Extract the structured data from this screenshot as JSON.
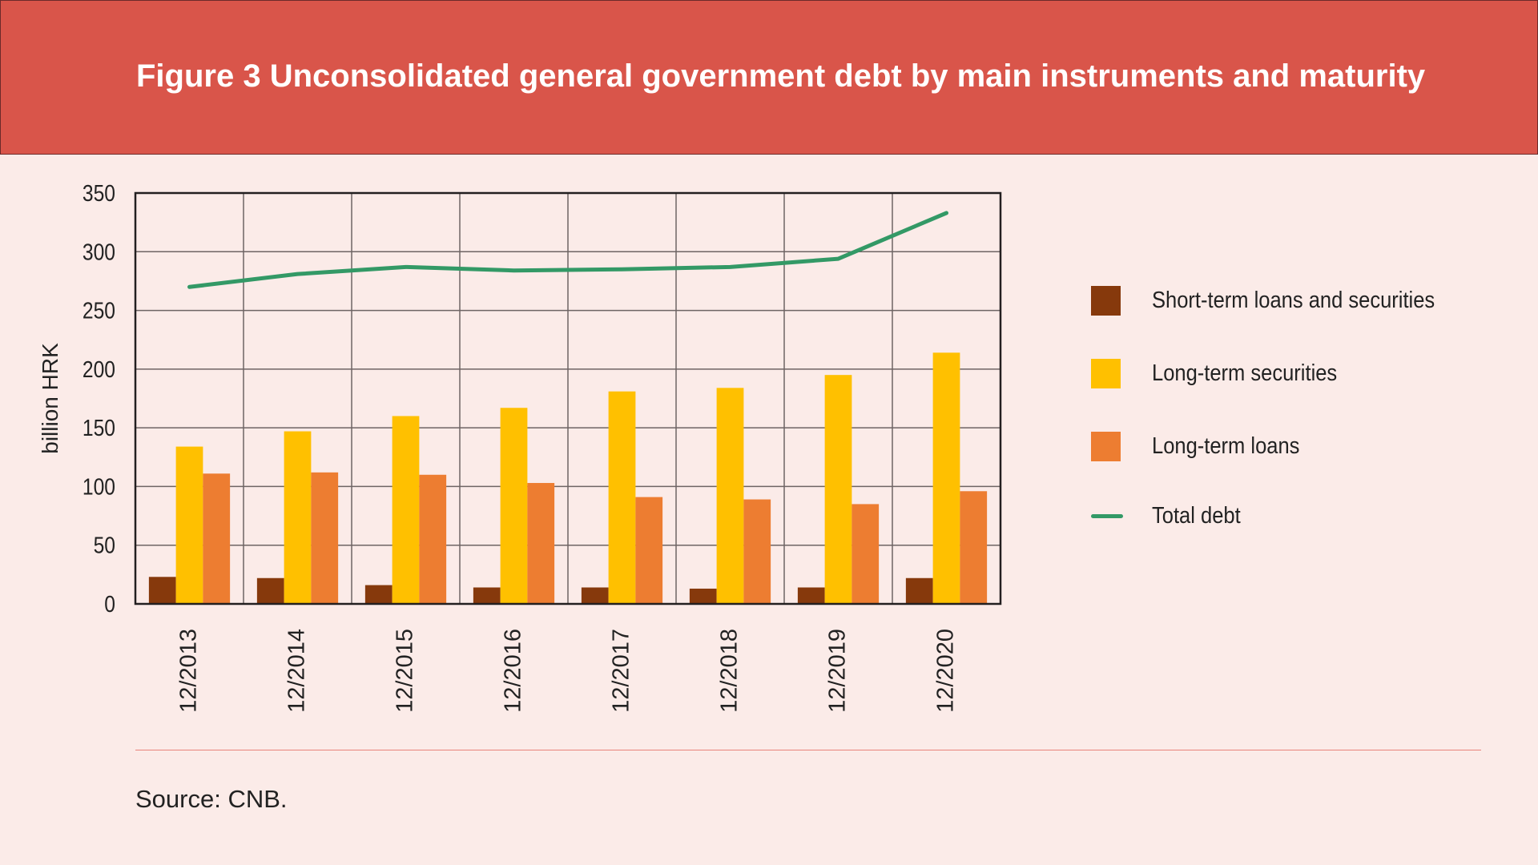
{
  "header": {
    "title": "Figure 3 Unconsolidated general government debt by main instruments and maturity"
  },
  "footer": {
    "source": "Source: CNB."
  },
  "colors": {
    "header": "#d9554a",
    "background": "#fbebe8",
    "short_term": "#86390c",
    "long_term_securities": "#ffc000",
    "long_term_loans": "#ed7d31",
    "total": "#339966"
  },
  "chart_data": {
    "type": "bar",
    "title": "Figure 3 Unconsolidated general government debt by main instruments and maturity",
    "xlabel": "",
    "ylabel": "billion HRK",
    "ylim": [
      0,
      350
    ],
    "yticks": [
      "0",
      "50",
      "100",
      "150",
      "200",
      "250",
      "300",
      "350"
    ],
    "grid": true,
    "legend_position": "right",
    "categories": [
      "12/2013",
      "12/2014",
      "12/2015",
      "12/2016",
      "12/2017",
      "12/2018",
      "12/2019",
      "12/2020"
    ],
    "series": [
      {
        "name": "Short-term loans and securities",
        "type": "bar",
        "values": [
          23,
          22,
          16,
          14,
          14,
          13,
          14,
          22
        ]
      },
      {
        "name": "Long-term securities",
        "type": "bar",
        "values": [
          134,
          147,
          160,
          167,
          181,
          184,
          195,
          214
        ]
      },
      {
        "name": "Long-term loans",
        "type": "bar",
        "values": [
          111,
          112,
          110,
          103,
          91,
          89,
          85,
          96
        ]
      },
      {
        "name": "Total debt",
        "type": "line",
        "values": [
          270,
          281,
          287,
          284,
          285,
          287,
          294,
          333
        ]
      }
    ]
  }
}
